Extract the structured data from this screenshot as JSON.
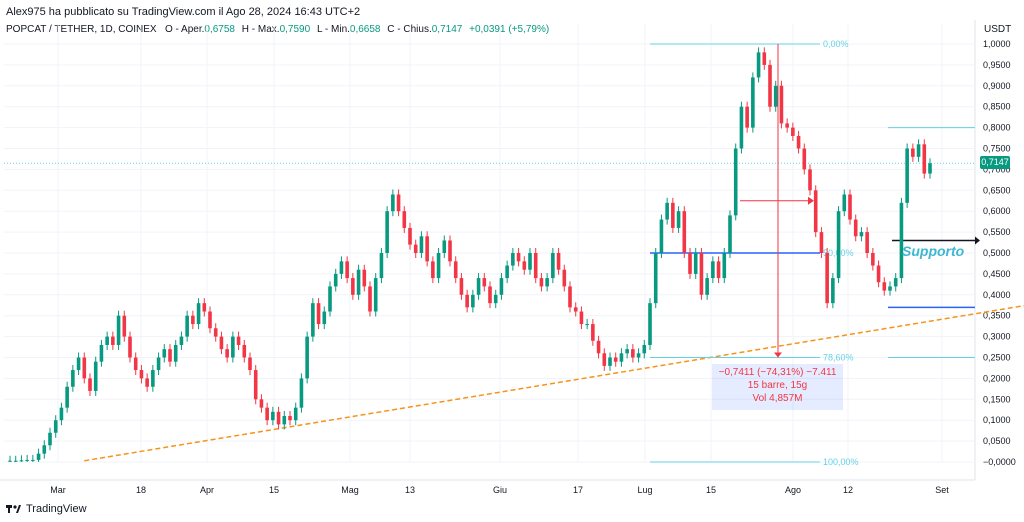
{
  "header": {
    "published": "Alex975 ha pubblicato su TradingView.com il Ago 28, 2024 16:43 UTC+2",
    "symbol": "POPCAT / TETHER, 1D, COINEX",
    "open_label": "O - Aper.",
    "open_value": "0,6758",
    "high_label": "H - Max.",
    "high_value": "0,7590",
    "low_label": "L - Min.",
    "low_value": "0,6658",
    "close_label": "C - Chius.",
    "close_value": "0,7147",
    "change_value": "+0,0391 (+5,79%)"
  },
  "currency": "USDT",
  "last_price": "0,7147",
  "brand": "TradingView",
  "colors": {
    "up": "#089981",
    "down": "#f23645",
    "trend": "#f7931a",
    "fib": "#64d2e6",
    "level": "#2962ff"
  },
  "annotations": {
    "measure_line1": "−0,7411 (−74,31%) −7.411",
    "measure_line2": "15 barre, 15g",
    "measure_line3": "Vol 4,857M",
    "support_label": "Supporto",
    "fib_0": "0,00%",
    "fib_50": "50,00%",
    "fib_786": "78,60%",
    "fib_100": "100,00%"
  },
  "chart_data": {
    "type": "candlestick",
    "x_labels": [
      "Mar",
      "18",
      "Apr",
      "15",
      "Mag",
      "13",
      "Giu",
      "17",
      "Lug",
      "15",
      "Ago",
      "12",
      "Set"
    ],
    "y_ticks": [
      "1,0000",
      "0,9500",
      "0,9000",
      "0,8500",
      "0,8000",
      "0,7500",
      "0,7000",
      "0,6500",
      "0,6000",
      "0,5500",
      "0,5000",
      "0,4500",
      "0,4000",
      "0,3500",
      "0,3000",
      "0,2500",
      "0,2000",
      "0,1500",
      "0,1000",
      "0,0500",
      "−0,0000"
    ],
    "ylim": [
      0,
      1
    ],
    "closes": [
      0.003,
      0.003,
      0.004,
      0.005,
      0.005,
      0.02,
      0.04,
      0.07,
      0.1,
      0.13,
      0.18,
      0.22,
      0.25,
      0.2,
      0.17,
      0.24,
      0.28,
      0.3,
      0.28,
      0.35,
      0.3,
      0.25,
      0.22,
      0.2,
      0.18,
      0.22,
      0.25,
      0.27,
      0.24,
      0.28,
      0.3,
      0.35,
      0.33,
      0.38,
      0.36,
      0.32,
      0.3,
      0.27,
      0.25,
      0.3,
      0.28,
      0.25,
      0.22,
      0.15,
      0.13,
      0.1,
      0.12,
      0.09,
      0.11,
      0.1,
      0.13,
      0.2,
      0.3,
      0.38,
      0.33,
      0.36,
      0.42,
      0.45,
      0.48,
      0.44,
      0.4,
      0.46,
      0.42,
      0.36,
      0.44,
      0.5,
      0.6,
      0.64,
      0.6,
      0.56,
      0.52,
      0.5,
      0.54,
      0.48,
      0.44,
      0.5,
      0.53,
      0.48,
      0.44,
      0.4,
      0.37,
      0.4,
      0.44,
      0.42,
      0.38,
      0.4,
      0.44,
      0.47,
      0.5,
      0.48,
      0.46,
      0.5,
      0.44,
      0.42,
      0.44,
      0.5,
      0.46,
      0.42,
      0.37,
      0.36,
      0.33,
      0.33,
      0.29,
      0.26,
      0.23,
      0.25,
      0.24,
      0.26,
      0.27,
      0.25,
      0.26,
      0.28,
      0.38,
      0.5,
      0.58,
      0.62,
      0.56,
      0.6,
      0.5,
      0.45,
      0.5,
      0.4,
      0.44,
      0.48,
      0.44,
      0.5,
      0.59,
      0.75,
      0.85,
      0.8,
      0.92,
      0.98,
      0.95,
      0.85,
      0.9,
      0.81,
      0.8,
      0.78,
      0.75,
      0.7,
      0.65,
      0.55,
      0.5,
      0.38,
      0.44,
      0.6,
      0.64,
      0.58,
      0.54,
      0.55,
      0.5,
      0.47,
      0.43,
      0.41,
      0.42,
      0.44,
      0.62,
      0.75,
      0.73,
      0.76,
      0.69,
      0.7147
    ],
    "last_close": 0.7147,
    "trendline": {
      "x_start_index": 13,
      "y_start": 0.003,
      "x_end_index": 182,
      "y_end": 0.4
    },
    "supports": [
      0.5,
      0.37,
      0.22
    ],
    "resistance": 0.8,
    "fib_levels": [
      1.0,
      0.5,
      0.25,
      0.0
    ]
  }
}
